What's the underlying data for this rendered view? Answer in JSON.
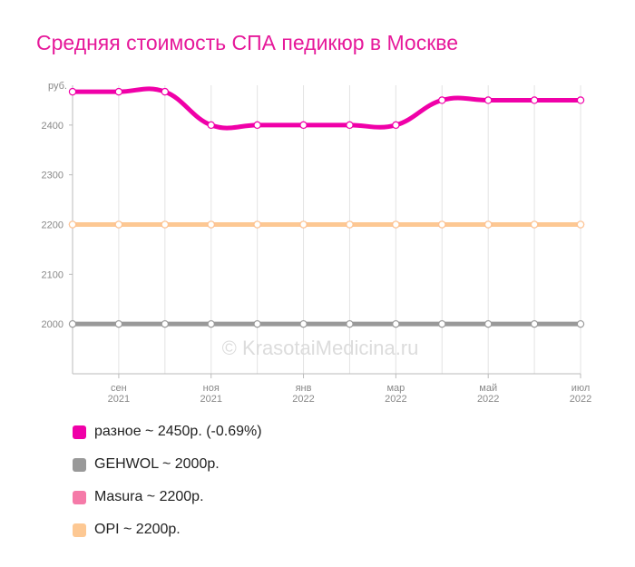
{
  "chart_data": {
    "type": "line",
    "title": "Средняя стоимость СПА педикюр в Москве",
    "y_unit": "руб.",
    "ylim": [
      1900,
      2480
    ],
    "y_ticks": [
      2000,
      2100,
      2200,
      2300,
      2400
    ],
    "x_labels": [
      {
        "month": "сен",
        "year": "2021"
      },
      {
        "month": "ноя",
        "year": "2021"
      },
      {
        "month": "янв",
        "year": "2022"
      },
      {
        "month": "мар",
        "year": "2022"
      },
      {
        "month": "май",
        "year": "2022"
      },
      {
        "month": "июл",
        "year": "2022"
      }
    ],
    "grid": true,
    "series": [
      {
        "name": "разное",
        "legend": "разное ~ 2450р. (-0.69%)",
        "color": "#f000a8",
        "values": [
          2467,
          2467,
          2467,
          2400,
          2400,
          2400,
          2400,
          2400,
          2450,
          2450,
          2450,
          2450
        ]
      },
      {
        "name": "GEHWOL",
        "legend": "GEHWOL ~ 2000р.",
        "color": "#999999",
        "values": [
          2000,
          2000,
          2000,
          2000,
          2000,
          2000,
          2000,
          2000,
          2000,
          2000,
          2000,
          2000
        ]
      },
      {
        "name": "Masura",
        "legend": "Masura ~ 2200р.",
        "color": "#f57aa8",
        "values": [
          2200,
          2200,
          2200,
          2200,
          2200,
          2200,
          2200,
          2200,
          2200,
          2200,
          2200,
          2200
        ]
      },
      {
        "name": "OPI",
        "legend": "OPI ~ 2200р.",
        "color": "#fdc893",
        "values": [
          2200,
          2200,
          2200,
          2200,
          2200,
          2200,
          2200,
          2200,
          2200,
          2200,
          2200,
          2200
        ]
      }
    ],
    "watermark": "© KrasotaiMedicina.ru"
  }
}
